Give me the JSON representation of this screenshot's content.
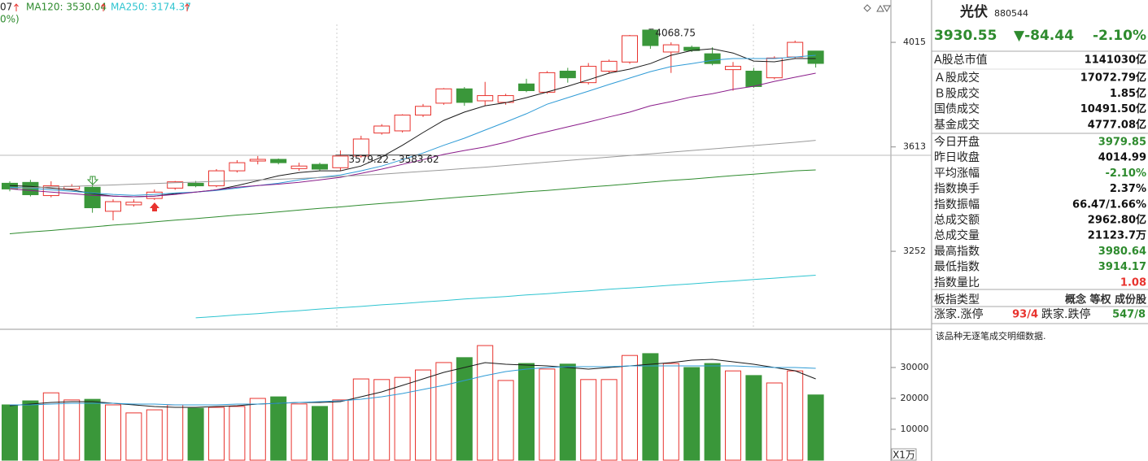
{
  "legend_partial": [
    "07",
    "0%)"
  ],
  "chart_data": [
    {
      "type": "candlestick",
      "log_scale": true,
      "ylim": [
        3006,
        4173
      ],
      "yticks": [
        4015,
        3613,
        3252
      ],
      "up_color": "#e8332e",
      "down_color": "#3a973a",
      "open": [
        3483,
        3486,
        3440,
        3463,
        3469,
        3386,
        3408,
        3430,
        3466,
        3483,
        3474,
        3527,
        3562,
        3568,
        3535,
        3550,
        3538,
        3580,
        3664,
        3672,
        3731,
        3776,
        3831,
        3785,
        3779,
        3850,
        3818,
        3900,
        3855,
        3900,
        3936,
        4065,
        3976,
        3995,
        3969,
        3906,
        3900,
        3874,
        3956,
        3979.85
      ],
      "high": [
        3490,
        3495,
        3490,
        3480,
        3506,
        3427,
        3427,
        3461,
        3491,
        3491,
        3533,
        3565,
        3580,
        3571,
        3556,
        3556,
        3600,
        3654,
        3697,
        3734,
        3773,
        3834,
        3838,
        3858,
        3812,
        3870,
        3900,
        3913,
        3932,
        3946,
        4045,
        4068.75,
        4015,
        4002,
        3995,
        3936,
        3913,
        3959,
        4022,
        3980.64
      ],
      "low": [
        3455,
        3437,
        3434,
        3458,
        3381,
        3355,
        3402,
        3425,
        3460,
        3469,
        3469,
        3521,
        3550,
        3550,
        3527,
        3527,
        3527,
        3574,
        3658,
        3666,
        3724,
        3770,
        3766,
        3766,
        3770,
        3818,
        3812,
        3855,
        3848,
        3890,
        3929,
        3989,
        3893,
        3976,
        3923,
        3824,
        3835,
        3868,
        3949,
        3914.17
      ],
      "close": [
        3463,
        3443,
        3474,
        3472,
        3398,
        3419,
        3417,
        3452,
        3488,
        3474,
        3527,
        3556,
        3568,
        3556,
        3544,
        3533,
        3580,
        3642,
        3690,
        3731,
        3764,
        3831,
        3779,
        3805,
        3805,
        3824,
        3894,
        3874,
        3919,
        3939,
        4042,
        4002,
        4005,
        3982,
        3930,
        3919,
        3840,
        3952,
        4014.99,
        3930.55
      ],
      "series": [
        {
          "color": "#1a1a1a",
          "values": [
            3475,
            3472,
            3466,
            3460,
            3447,
            3438,
            3436,
            3438,
            3447,
            3452,
            3460,
            3475,
            3492,
            3509,
            3521,
            3527,
            3527,
            3544,
            3577,
            3619,
            3666,
            3711,
            3742,
            3766,
            3778,
            3797,
            3819,
            3841,
            3866,
            3892,
            3908,
            3930,
            3963,
            3982,
            3989,
            3972,
            3940,
            3937,
            3950,
            3950
          ]
        },
        {
          "color": "#2f9bd6",
          "values": [
            3469,
            3466,
            3460,
            3455,
            3449,
            3444,
            3441,
            3444,
            3449,
            3452,
            3458,
            3466,
            3475,
            3483,
            3495,
            3504,
            3512,
            3527,
            3544,
            3567,
            3591,
            3619,
            3645,
            3675,
            3705,
            3736,
            3772,
            3797,
            3822,
            3848,
            3873,
            3898,
            3918,
            3930,
            3943,
            3950,
            3950,
            3950,
            3956,
            3963
          ]
        },
        {
          "color": "#8a1c8a",
          "values": [
            3463,
            3458,
            3452,
            3447,
            3441,
            3438,
            3436,
            3438,
            3444,
            3452,
            3460,
            3469,
            3475,
            3480,
            3486,
            3495,
            3504,
            3518,
            3533,
            3550,
            3567,
            3586,
            3600,
            3613,
            3630,
            3651,
            3669,
            3687,
            3705,
            3724,
            3742,
            3766,
            3782,
            3800,
            3812,
            3829,
            3841,
            3860,
            3876,
            3892
          ]
        },
        {
          "color": "#9a9a9a",
          "values": [
            3465,
            3467,
            3470,
            3472,
            3475,
            3477,
            3480,
            3482,
            3485,
            3487,
            3490,
            3492,
            3495,
            3497,
            3500,
            3503,
            3507,
            3511,
            3515,
            3520,
            3525,
            3530,
            3535,
            3540,
            3546,
            3552,
            3558,
            3564,
            3570,
            3576,
            3582,
            3588,
            3594,
            3600,
            3606,
            3612,
            3618,
            3624,
            3630,
            3637
          ]
        },
        {
          "label": "MA120: 3530.04",
          "color": "#2e8b2e",
          "values": [
            3310,
            3316,
            3321,
            3327,
            3333,
            3339,
            3344,
            3350,
            3356,
            3361,
            3367,
            3373,
            3378,
            3384,
            3390,
            3396,
            3401,
            3407,
            3413,
            3418,
            3424,
            3430,
            3436,
            3441,
            3447,
            3453,
            3458,
            3464,
            3470,
            3475,
            3481,
            3487,
            3493,
            3498,
            3504,
            3510,
            3515,
            3521,
            3527,
            3530.04
          ]
        },
        {
          "label": "MA250: 3174.37",
          "color": "#2ec4d0",
          "values": [
            null,
            null,
            null,
            null,
            null,
            null,
            null,
            null,
            null,
            3041,
            3045,
            3050,
            3054,
            3059,
            3063,
            3068,
            3072,
            3076,
            3081,
            3085,
            3090,
            3094,
            3099,
            3103,
            3107,
            3112,
            3116,
            3121,
            3125,
            3130,
            3134,
            3138,
            3143,
            3147,
            3152,
            3156,
            3161,
            3165,
            3170,
            3174.37
          ]
        }
      ],
      "range_annotation": {
        "values": [
          3579.22,
          3583.62
        ],
        "label": "3579.22 - 3583.62"
      }
    },
    {
      "type": "bar",
      "ylim": [
        0,
        42370
      ],
      "yticks": [
        10000,
        20000,
        30000
      ],
      "unit": "X1万",
      "values": [
        17900,
        19200,
        21800,
        19500,
        19700,
        17900,
        15300,
        16300,
        17900,
        16800,
        17100,
        17400,
        20000,
        20500,
        18200,
        17400,
        19500,
        26300,
        26100,
        26800,
        29200,
        31600,
        33200,
        37100,
        25800,
        31300,
        29500,
        31100,
        26100,
        26100,
        33900,
        34500,
        31300,
        30000,
        31300,
        28900,
        27400,
        25000,
        28900,
        21123.7
      ],
      "series": [
        {
          "color": "#1a1a1a",
          "values": [
            17630,
            18160,
            18680,
            18950,
            18950,
            18420,
            17890,
            17370,
            17110,
            17110,
            17370,
            17630,
            18160,
            18420,
            18680,
            18680,
            18950,
            20530,
            22110,
            24210,
            26320,
            28420,
            30000,
            31580,
            31050,
            30790,
            30530,
            30000,
            29470,
            30000,
            30530,
            31050,
            31580,
            32370,
            32630,
            31840,
            31050,
            30000,
            28950,
            26320
          ]
        },
        {
          "color": "#2f9bd6",
          "values": [
            17890,
            17890,
            18160,
            18420,
            18420,
            18420,
            18160,
            18160,
            17890,
            17890,
            17890,
            18160,
            18160,
            18420,
            18680,
            18950,
            19210,
            19740,
            20530,
            21580,
            22890,
            24210,
            25790,
            27370,
            28680,
            29470,
            30000,
            30260,
            30260,
            30260,
            30530,
            30530,
            30530,
            30530,
            30530,
            30530,
            30260,
            30000,
            30000,
            29740
          ]
        }
      ]
    }
  ],
  "quote": {
    "name": "光伏",
    "code": "880544",
    "price": "3930.55",
    "change": "▼-84.44",
    "change_pct": "-2.10%",
    "rows": [
      {
        "label": "A股总市值",
        "value": "1141030亿",
        "color": "#111111"
      },
      {
        "label": "Ａ股成交",
        "value": "17072.79亿",
        "color": "#111111"
      },
      {
        "label": "Ｂ股成交",
        "value": "1.85亿",
        "color": "#111111"
      },
      {
        "label": "国债成交",
        "value": "10491.50亿",
        "color": "#111111"
      },
      {
        "label": "基金成交",
        "value": "4777.08亿",
        "color": "#111111"
      },
      {
        "label": "今日开盘",
        "value": "3979.85",
        "color": "#2e8b2e"
      },
      {
        "label": "昨日收盘",
        "value": "4014.99",
        "color": "#111111"
      },
      {
        "label": "平均涨幅",
        "value": "-2.10%",
        "color": "#2e8b2e"
      },
      {
        "label": "指数换手",
        "value": "2.37%",
        "color": "#111111"
      },
      {
        "label": "指数振幅",
        "value": "66.47/1.66%",
        "color": "#111111"
      },
      {
        "label": "总成交额",
        "value": "2962.80亿",
        "color": "#111111"
      },
      {
        "label": "总成交量",
        "value": "21123.7万",
        "color": "#111111"
      },
      {
        "label": "最高指数",
        "value": "3980.64",
        "color": "#2e8b2e"
      },
      {
        "label": "最低指数",
        "value": "3914.17",
        "color": "#2e8b2e"
      },
      {
        "label": "指数量比",
        "value": "1.08",
        "color": "#e8332e"
      },
      {
        "label": "板指类型",
        "value": "概念 等权 成份股",
        "color": "#333333"
      }
    ],
    "breadth": [
      {
        "label": "涨家.涨停",
        "value": "93/4",
        "color": "#e8332e"
      },
      {
        "label": "跌家.跌停",
        "value": "547/8",
        "color": "#2e8b2e"
      }
    ],
    "note": "该品种无逐笔成交明细数据."
  }
}
